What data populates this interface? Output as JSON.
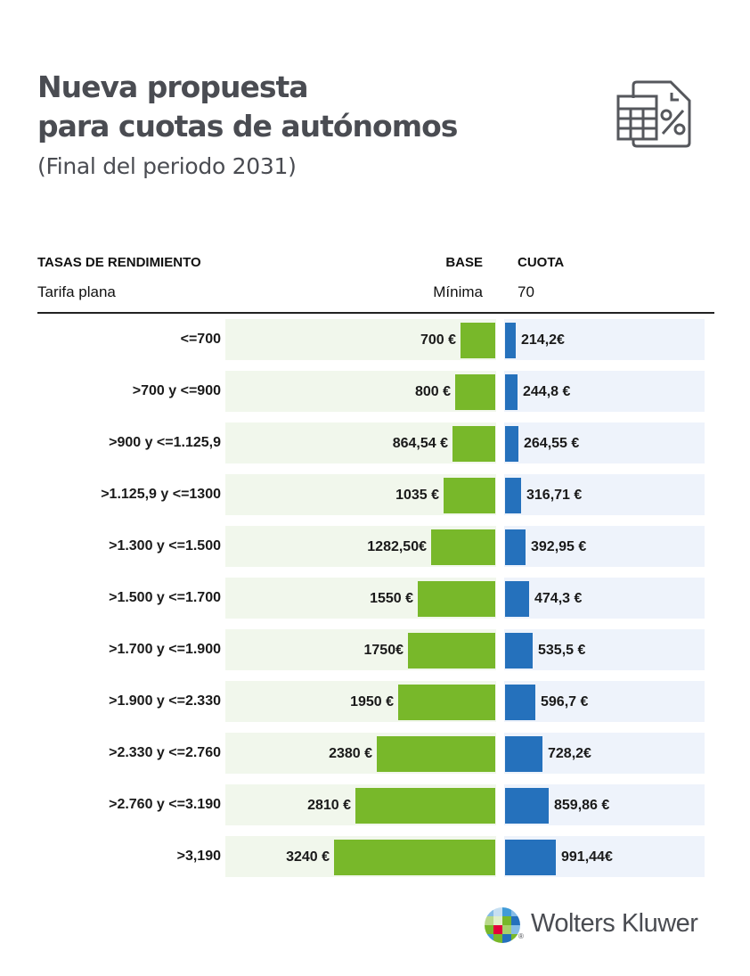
{
  "header": {
    "title_line1": "Nueva propuesta",
    "title_line2": "para cuotas de autónomos",
    "subtitle": "(Final del periodo 2031)",
    "icon": "calculator-percent-document-icon"
  },
  "table": {
    "col_tasas": "TASAS DE RENDIMIENTO",
    "col_base": "BASE",
    "col_cuota": "CUOTA",
    "flat_label": "Tarifa plana",
    "flat_base": "Mínima",
    "flat_cuota": "70"
  },
  "colors": {
    "base_bar": "#78b82a",
    "base_bg": "#f1f7ec",
    "cuota_bar": "#2571bc",
    "cuota_bg": "#eef3fb",
    "title": "#4a4c52"
  },
  "chart_data": {
    "type": "bar",
    "title": "Nueva propuesta para cuotas de autónomos",
    "subtitle": "(Final del periodo 2031)",
    "orientation": "horizontal",
    "categories": [
      "<=700",
      ">700 y <=900",
      ">900 y <=1.125,9",
      ">1.125,9 y <=1300",
      ">1.300 y <=1.500",
      ">1.500 y <=1.700",
      ">1.700 y <=1.900",
      ">1.900 y <=2.330",
      ">2.330 y <=2.760",
      ">2.760 y <=3.190",
      ">3,190"
    ],
    "series": [
      {
        "name": "BASE",
        "values": [
          700,
          800,
          864.54,
          1035,
          1282.5,
          1550,
          1750,
          1950,
          2380,
          2810,
          3240
        ],
        "labels": [
          "700 €",
          "800 €",
          "864,54 €",
          "1035 €",
          "1282,50€",
          "1550 €",
          "1750€",
          "1950 €",
          "2380 €",
          "2810 €",
          "3240 €"
        ]
      },
      {
        "name": "CUOTA",
        "values": [
          214.2,
          244.8,
          264.55,
          316.71,
          392.95,
          474.3,
          535.5,
          596.7,
          728.2,
          859.86,
          991.44
        ],
        "labels": [
          "214,2€",
          "244,8 €",
          "264,55 €",
          "316,71 €",
          "392,95 €",
          "474,3 €",
          "535,5 €",
          "596,7 €",
          "728,2€",
          "859,86 €",
          "991,44€"
        ]
      }
    ],
    "xlim_base": [
      0,
      3240
    ],
    "xlim_cuota": [
      0,
      991.44
    ],
    "grid": false,
    "legend": "none"
  },
  "footer": {
    "brand": "Wolters Kluwer",
    "registered": "®"
  }
}
